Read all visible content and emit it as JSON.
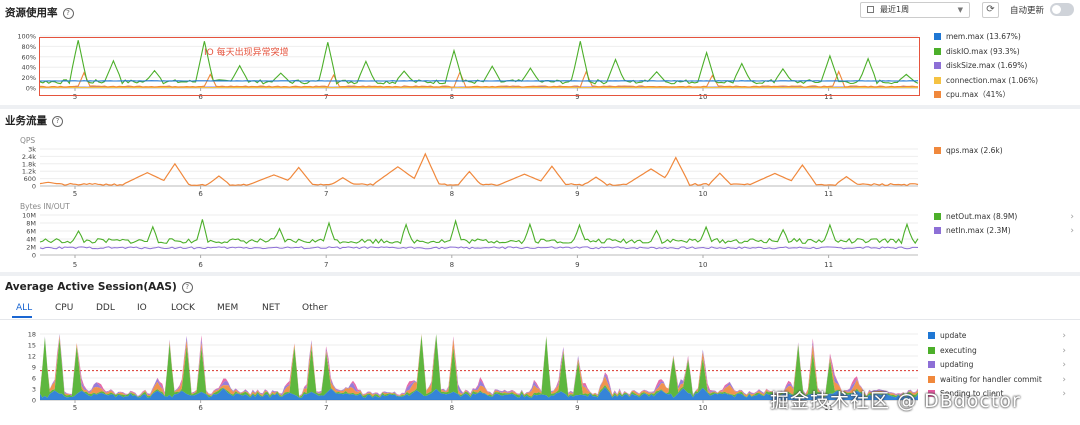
{
  "resource": {
    "title": "资源使用率",
    "time_select": "最近1周",
    "auto_refresh_label": "自动更新",
    "auto_refresh_on": false,
    "annotation": "IO 每天出现异常突增",
    "y_ticks": [
      "100%",
      "80%",
      "60%",
      "40%",
      "20%",
      "0%"
    ],
    "legend": [
      {
        "label": "mem.max (13.67%)",
        "color": "#1f77d4"
      },
      {
        "label": "diskIO.max (93.3%)",
        "color": "#4caf2a"
      },
      {
        "label": "diskSize.max (1.69%)",
        "color": "#8d6fd6"
      },
      {
        "label": "connection.max (1.06%)",
        "color": "#f5c242"
      },
      {
        "label": "cpu.max（41%）",
        "color": "#f0883c"
      }
    ]
  },
  "business": {
    "title": "业务流量",
    "qps_label": "QPS",
    "qps_y_ticks": [
      "3k",
      "2.4k",
      "1.8k",
      "1.2k",
      "600",
      "0"
    ],
    "qps_legend": [
      {
        "label": "qps.max (2.6k)",
        "color": "#f0883c"
      }
    ],
    "bytes_label": "Bytes IN/OUT",
    "bytes_y_ticks": [
      "10M",
      "8M",
      "6M",
      "4M",
      "2M",
      "0"
    ],
    "bytes_legend": [
      {
        "label": "netOut.max (8.9M)",
        "color": "#4caf2a"
      },
      {
        "label": "netIn.max (2.3M)",
        "color": "#8d6fd6"
      }
    ]
  },
  "aas": {
    "title": "Average Active Session(AAS)",
    "tabs": [
      "ALL",
      "CPU",
      "DDL",
      "IO",
      "LOCK",
      "MEM",
      "NET",
      "Other"
    ],
    "active_tab": "ALL",
    "y_ticks": [
      "18",
      "15",
      "12",
      "9",
      "6",
      "3",
      "0"
    ],
    "legend": [
      {
        "label": "update",
        "color": "#1f77d4"
      },
      {
        "label": "executing",
        "color": "#4caf2a"
      },
      {
        "label": "updating",
        "color": "#8d6fd6"
      },
      {
        "label": "waiting for handler commit",
        "color": "#f0883c"
      },
      {
        "label": "Sending to client",
        "color": "#e35a9f"
      }
    ]
  },
  "x_ticks": [
    "5",
    "6",
    "7",
    "8",
    "9",
    "10",
    "11"
  ],
  "watermark": "掘金技术社区 @ DBdoctor",
  "chart_data": [
    {
      "type": "line",
      "title": "资源使用率",
      "x": [
        "5",
        "6",
        "7",
        "8",
        "9",
        "10",
        "11"
      ],
      "ylim": [
        0,
        100
      ],
      "series": [
        {
          "name": "mem.max (13.67%)",
          "values": [
            13,
            13,
            13,
            13,
            13,
            13,
            13
          ]
        },
        {
          "name": "diskIO.max (93.3%)",
          "values": [
            12,
            93,
            90,
            88,
            72,
            90,
            68
          ]
        },
        {
          "name": "diskSize.max (1.69%)",
          "values": [
            1.7,
            1.7,
            1.7,
            1.7,
            1.7,
            1.7,
            1.7
          ]
        },
        {
          "name": "connection.max (1.06%)",
          "values": [
            1,
            1,
            1,
            1,
            1,
            1,
            1
          ]
        },
        {
          "name": "cpu.max（41%）",
          "values": [
            5,
            35,
            41,
            30,
            30,
            40,
            35
          ]
        }
      ]
    },
    {
      "type": "line",
      "title": "QPS",
      "x": [
        "5",
        "6",
        "7",
        "8",
        "9",
        "10",
        "11"
      ],
      "ylim": [
        0,
        3000
      ],
      "series": [
        {
          "name": "qps.max (2.6k)",
          "values": [
            300,
            1800,
            1500,
            2600,
            1600,
            2300,
            1700
          ]
        }
      ]
    },
    {
      "type": "line",
      "title": "Bytes IN/OUT",
      "x": [
        "5",
        "6",
        "7",
        "8",
        "9",
        "10",
        "11"
      ],
      "ylim": [
        0,
        10
      ],
      "series": [
        {
          "name": "netOut.max (8.9M)",
          "values": [
            4,
            8.9,
            8,
            8.5,
            8,
            7,
            7.5
          ]
        },
        {
          "name": "netIn.max (2.3M)",
          "values": [
            2,
            2.3,
            2,
            2.2,
            2,
            2.1,
            2
          ]
        }
      ]
    },
    {
      "type": "area",
      "title": "Average Active Session(AAS)",
      "x": [
        "5",
        "6",
        "7",
        "8",
        "9",
        "10",
        "11"
      ],
      "ylim": [
        0,
        18
      ],
      "series": [
        {
          "name": "update",
          "values": [
            3,
            3,
            3,
            3,
            3,
            3,
            3
          ]
        },
        {
          "name": "executing",
          "values": [
            16,
            14,
            13,
            16,
            16,
            11,
            14
          ]
        },
        {
          "name": "updating",
          "values": [
            1,
            1,
            1,
            1,
            1,
            1,
            1
          ]
        },
        {
          "name": "waiting for handler commit",
          "values": [
            2,
            2,
            2,
            2,
            2,
            2,
            2
          ]
        },
        {
          "name": "Sending to client",
          "values": [
            1,
            1,
            1,
            1,
            1,
            1,
            1
          ]
        }
      ]
    }
  ]
}
